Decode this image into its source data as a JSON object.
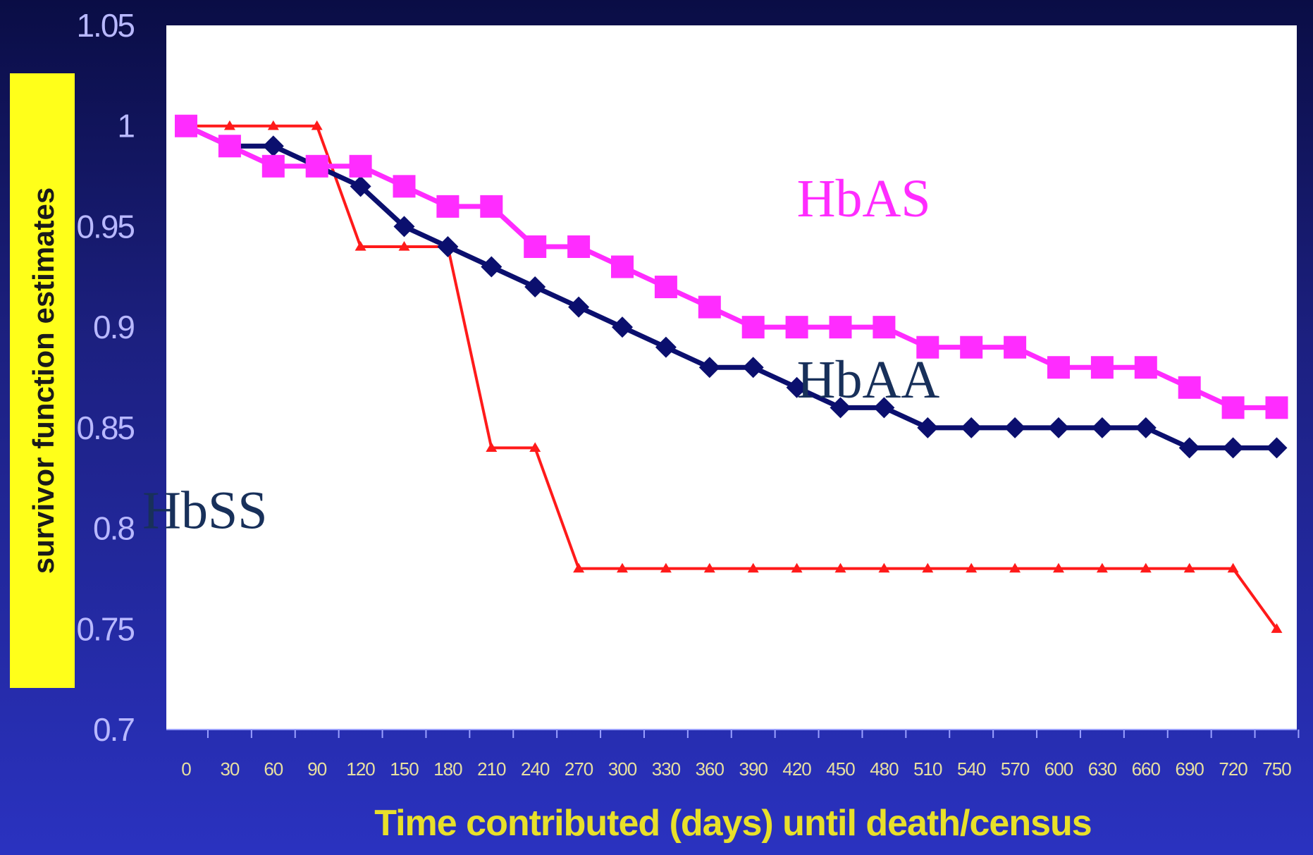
{
  "chart_data": {
    "type": "line",
    "xlabel": "Time contributed (days) until death/census",
    "ylabel": "survivor function estimates",
    "ylim": [
      0.7,
      1.05
    ],
    "yticks": [
      "0.7",
      "0.75",
      "0.8",
      "0.85",
      "0.9",
      "0.95",
      "1",
      "1.05"
    ],
    "x": [
      0,
      30,
      60,
      90,
      120,
      150,
      180,
      210,
      240,
      270,
      300,
      330,
      360,
      390,
      420,
      450,
      480,
      510,
      540,
      570,
      600,
      630,
      660,
      690,
      720,
      750
    ],
    "grid": false,
    "series": [
      {
        "name": "HbAS",
        "color": "#ff2cff",
        "marker": "square",
        "values": [
          1.0,
          0.99,
          0.98,
          0.98,
          0.98,
          0.97,
          0.96,
          0.96,
          0.94,
          0.94,
          0.93,
          0.92,
          0.91,
          0.9,
          0.9,
          0.9,
          0.9,
          0.89,
          0.89,
          0.89,
          0.88,
          0.88,
          0.88,
          0.87,
          0.86,
          0.86
        ]
      },
      {
        "name": "HbAA",
        "color": "#0b0f6e",
        "marker": "diamond",
        "values": [
          1.0,
          0.99,
          0.99,
          0.98,
          0.97,
          0.95,
          0.94,
          0.93,
          0.92,
          0.91,
          0.9,
          0.89,
          0.88,
          0.88,
          0.87,
          0.86,
          0.86,
          0.85,
          0.85,
          0.85,
          0.85,
          0.85,
          0.85,
          0.84,
          0.84,
          0.84
        ]
      },
      {
        "name": "HbSS",
        "color": "#ff1a1a",
        "marker": "triangle",
        "values": [
          1.0,
          1.0,
          1.0,
          1.0,
          0.94,
          0.94,
          0.94,
          0.84,
          0.84,
          0.78,
          0.78,
          0.78,
          0.78,
          0.78,
          0.78,
          0.78,
          0.78,
          0.78,
          0.78,
          0.78,
          0.78,
          0.78,
          0.78,
          0.78,
          0.78,
          0.75
        ]
      }
    ],
    "annotations": [
      {
        "text": "HbAS",
        "color": "#ff2cff",
        "x": 420,
        "y": 0.955
      },
      {
        "text": "HbAA",
        "color": "#18305a",
        "x": 420,
        "y": 0.865
      },
      {
        "text": "HbSS",
        "color": "#18305a",
        "x": 620,
        "y": 0.8
      }
    ]
  }
}
